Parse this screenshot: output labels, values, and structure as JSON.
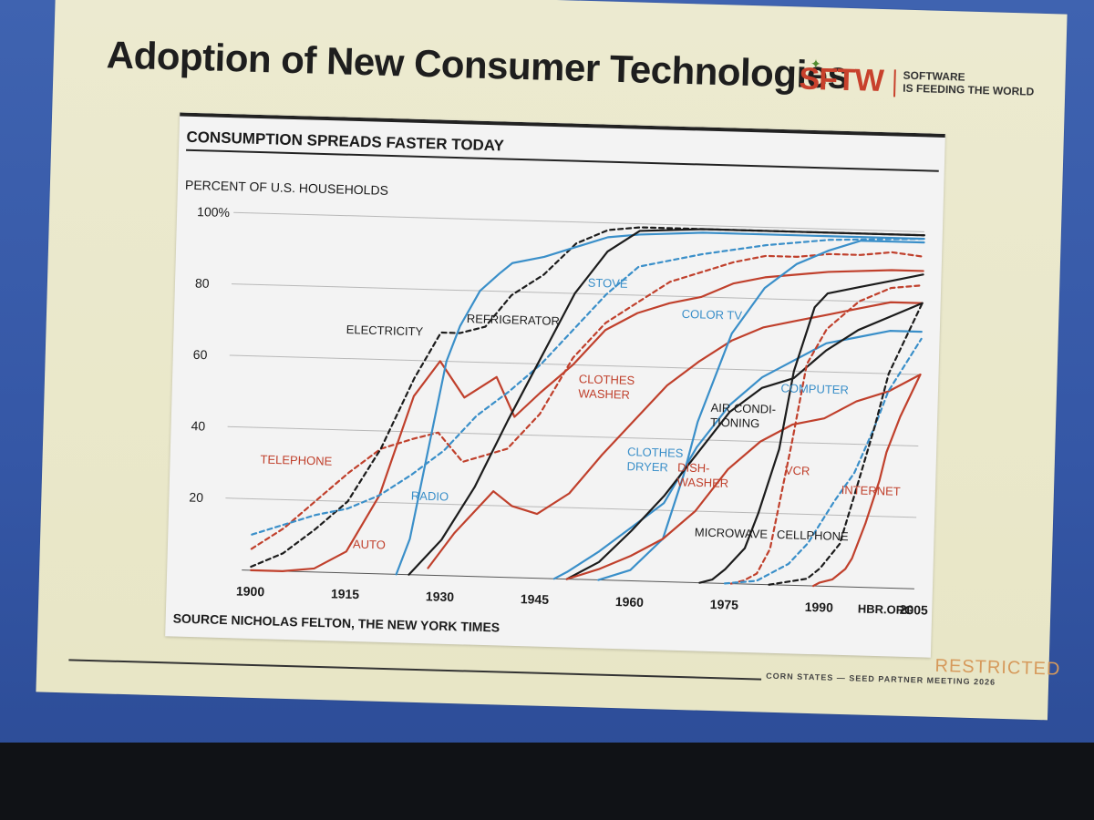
{
  "slide": {
    "title": "Adoption of New Consumer Technologies",
    "logo": {
      "mark": "SFTW",
      "line1": "SOFTWARE",
      "line2": "IS FEEDING THE WORLD"
    },
    "footer": "CORN STATES — SEED PARTNER MEETING 2026",
    "restricted": "RESTRICTED"
  },
  "chart_data": {
    "type": "line",
    "title": "CONSUMPTION SPREADS FASTER TODAY",
    "ylabel": "PERCENT OF U.S. HOUSEHOLDS",
    "xlabel": "",
    "xlim": [
      1900,
      2005
    ],
    "ylim": [
      0,
      100
    ],
    "xticks": [
      "1900",
      "1915",
      "1930",
      "1945",
      "1960",
      "1975",
      "1990",
      "2005"
    ],
    "xtick_values": [
      1900,
      1915,
      1930,
      1945,
      1960,
      1975,
      1990,
      2005
    ],
    "yticks": [
      "100%",
      "80",
      "60",
      "40",
      "20"
    ],
    "ytick_values": [
      100,
      80,
      60,
      40,
      20
    ],
    "grid": true,
    "source": "SOURCE NICHOLAS FELTON, THE NEW YORK TIMES",
    "credit": "HBR.ORG",
    "colors": {
      "red": "#c0402c",
      "blue": "#3a8fc9",
      "black": "#1c1c1c"
    },
    "series": [
      {
        "name": "TELEPHONE",
        "color": "red",
        "dashed": true,
        "x": [
          1900,
          1905,
          1910,
          1915,
          1920,
          1925,
          1929,
          1933,
          1940,
          1945,
          1950,
          1955,
          1960,
          1965,
          1970,
          1975,
          1980,
          1985,
          1990,
          1995,
          2000,
          2005
        ],
        "y": [
          6,
          12,
          20,
          28,
          35,
          38,
          40,
          32,
          36,
          46,
          62,
          72,
          78,
          84,
          87,
          90,
          92,
          92,
          93,
          93,
          94,
          93
        ]
      },
      {
        "name": "AUTO",
        "color": "red",
        "dashed": false,
        "x": [
          1900,
          1905,
          1910,
          1915,
          1920,
          1925,
          1929,
          1933,
          1938,
          1941,
          1945,
          1950,
          1955,
          1960,
          1965,
          1970,
          1975,
          1980,
          1990,
          2000,
          2005
        ],
        "y": [
          0,
          0,
          1,
          6,
          22,
          50,
          60,
          50,
          56,
          45,
          52,
          60,
          70,
          75,
          78,
          80,
          84,
          86,
          88,
          89,
          89
        ]
      },
      {
        "name": "ELECTRICITY",
        "color": "black",
        "dashed": true,
        "x": [
          1900,
          1905,
          1910,
          1915,
          1920,
          1925,
          1929,
          1932,
          1936,
          1940,
          1945,
          1950,
          1955,
          1960,
          1970,
          1980,
          1990,
          2005
        ],
        "y": [
          1,
          5,
          12,
          20,
          35,
          55,
          68,
          68,
          70,
          79,
          85,
          94,
          98,
          99,
          99,
          99,
          99,
          99
        ]
      },
      {
        "name": "RADIO",
        "color": "blue",
        "dashed": false,
        "x": [
          1923,
          1925,
          1928,
          1930,
          1932,
          1935,
          1938,
          1940,
          1945,
          1950,
          1955,
          1960,
          1970,
          1980,
          1990,
          2005
        ],
        "y": [
          0,
          10,
          40,
          60,
          70,
          80,
          85,
          88,
          90,
          93,
          96,
          97,
          98,
          98,
          98,
          98
        ]
      },
      {
        "name": "STOVE",
        "color": "blue",
        "dashed": true,
        "x": [
          1900,
          1905,
          1910,
          1915,
          1920,
          1925,
          1930,
          1935,
          1940,
          1945,
          1950,
          1955,
          1960,
          1970,
          1980,
          1990,
          2005
        ],
        "y": [
          10,
          13,
          16,
          18,
          22,
          28,
          35,
          45,
          52,
          60,
          70,
          80,
          88,
          92,
          95,
          97,
          98
        ]
      },
      {
        "name": "REFRIGERATOR",
        "color": "black",
        "dashed": false,
        "x": [
          1925,
          1930,
          1935,
          1940,
          1945,
          1950,
          1955,
          1960,
          1970,
          1980,
          1990,
          2005
        ],
        "y": [
          0,
          10,
          25,
          44,
          62,
          80,
          92,
          98,
          99,
          99,
          99,
          99
        ]
      },
      {
        "name": "CLOTHES WASHER",
        "color": "red",
        "dashed": false,
        "x": [
          1928,
          1932,
          1936,
          1938,
          1941,
          1945,
          1950,
          1955,
          1960,
          1965,
          1970,
          1975,
          1980,
          1985,
          1990,
          1995,
          2000,
          2005
        ],
        "y": [
          2,
          12,
          20,
          24,
          20,
          18,
          24,
          35,
          45,
          55,
          62,
          68,
          72,
          74,
          76,
          78,
          80,
          80
        ]
      },
      {
        "name": "COLOR TV",
        "color": "blue",
        "dashed": false,
        "x": [
          1955,
          1960,
          1965,
          1968,
          1970,
          1975,
          1980,
          1985,
          1990,
          1995,
          2000,
          2005
        ],
        "y": [
          0,
          3,
          12,
          30,
          45,
          70,
          83,
          90,
          94,
          97,
          97,
          97
        ]
      },
      {
        "name": "CLOTHES DRYER",
        "color": "blue",
        "dashed": false,
        "x": [
          1948,
          1950,
          1955,
          1960,
          1965,
          1970,
          1975,
          1980,
          1985,
          1990,
          1995,
          2000,
          2005
        ],
        "y": [
          0,
          2,
          8,
          15,
          22,
          38,
          50,
          58,
          63,
          68,
          70,
          72,
          72
        ]
      },
      {
        "name": "AIR CONDITIONING",
        "color": "black",
        "dashed": false,
        "x": [
          1950,
          1955,
          1960,
          1965,
          1970,
          1975,
          1980,
          1985,
          1990,
          1995,
          2000,
          2005
        ],
        "y": [
          0,
          5,
          14,
          24,
          36,
          48,
          55,
          58,
          66,
          72,
          76,
          80
        ]
      },
      {
        "name": "DISHWASHER",
        "color": "red",
        "dashed": false,
        "x": [
          1950,
          1955,
          1960,
          1965,
          1970,
          1975,
          1980,
          1985,
          1990,
          1995,
          2000,
          2005
        ],
        "y": [
          0,
          3,
          7,
          12,
          20,
          32,
          40,
          45,
          47,
          52,
          55,
          60
        ]
      },
      {
        "name": "MICROWAVE",
        "color": "black",
        "dashed": false,
        "x": [
          1971,
          1973,
          1975,
          1978,
          1980,
          1983,
          1985,
          1988,
          1990,
          1995,
          2000,
          2005
        ],
        "y": [
          0,
          1,
          4,
          10,
          20,
          38,
          60,
          78,
          82,
          84,
          86,
          88
        ]
      },
      {
        "name": "VCR",
        "color": "red",
        "dashed": true,
        "x": [
          1976,
          1978,
          1980,
          1982,
          1985,
          1987,
          1990,
          1995,
          2000,
          2005
        ],
        "y": [
          0,
          1,
          3,
          10,
          40,
          62,
          72,
          80,
          84,
          85
        ]
      },
      {
        "name": "COMPUTER",
        "color": "blue",
        "dashed": true,
        "x": [
          1975,
          1980,
          1985,
          1988,
          1990,
          1992,
          1995,
          1998,
          2000,
          2005
        ],
        "y": [
          0,
          1,
          6,
          12,
          18,
          24,
          32,
          45,
          55,
          70
        ]
      },
      {
        "name": "CELLPHONE",
        "color": "black",
        "dashed": true,
        "x": [
          1982,
          1985,
          1988,
          1990,
          1993,
          1995,
          1998,
          2000,
          2003,
          2005
        ],
        "y": [
          0,
          1,
          2,
          5,
          12,
          25,
          45,
          60,
          72,
          80
        ]
      },
      {
        "name": "INTERNET",
        "color": "red",
        "dashed": false,
        "x": [
          1989,
          1990,
          1992,
          1994,
          1995,
          1997,
          1999,
          2000,
          2002,
          2005
        ],
        "y": [
          0,
          1,
          2,
          5,
          8,
          18,
          30,
          38,
          48,
          60
        ]
      }
    ]
  }
}
